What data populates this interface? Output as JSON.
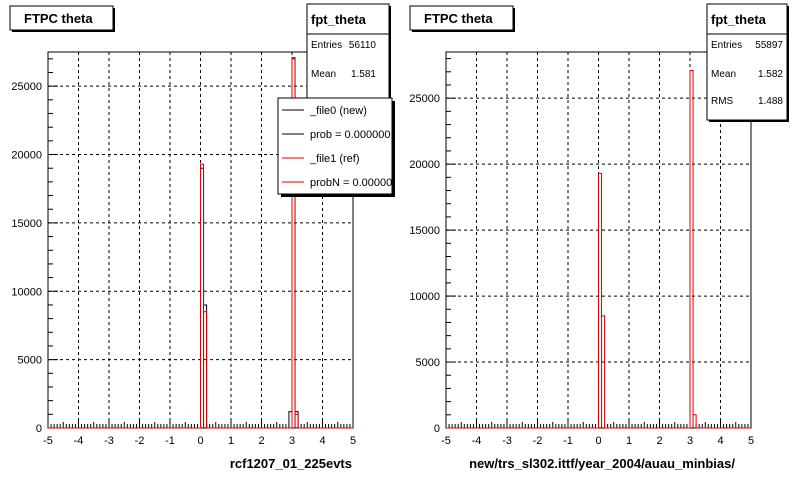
{
  "colors": {
    "new": "#000000",
    "ref": "#dd0000",
    "grid": "#000000",
    "box_shadow": "#000000",
    "background": "#ffffff"
  },
  "chart_data": [
    {
      "type": "histogram",
      "title": "FTPC theta",
      "xlabel": "rcf1207_01_225evts",
      "ylabel": "",
      "xlim": [
        -5,
        5
      ],
      "ylim": [
        0,
        27500
      ],
      "x_ticks": [
        -5,
        -4,
        -3,
        -2,
        -1,
        0,
        1,
        2,
        3,
        4,
        5
      ],
      "y_ticks": [
        0,
        5000,
        10000,
        15000,
        20000,
        25000
      ],
      "grid": true,
      "stats": {
        "name": "fpt_theta",
        "rows": [
          {
            "label": "Entries",
            "value": "56110"
          },
          {
            "label": "Mean",
            "value": "1.581"
          }
        ]
      },
      "legend": {
        "placement": "top-right",
        "entries": [
          {
            "label": "_file0 (new)",
            "series": "new"
          },
          {
            "label": "prob = 0.000000",
            "series": "new"
          },
          {
            "label": "_file1 (ref)",
            "series": "ref"
          },
          {
            "label": "probN = 0.000000",
            "series": "ref"
          }
        ]
      },
      "series": [
        {
          "key": "new",
          "bins": [
            [
              0.0,
              0.1,
              19000
            ],
            [
              0.1,
              0.2,
              9000
            ],
            [
              2.9,
              3.0,
              1200
            ],
            [
              3.0,
              3.1,
              27000
            ],
            [
              3.1,
              3.2,
              1200
            ]
          ]
        },
        {
          "key": "ref",
          "bins": [
            [
              0.0,
              0.1,
              19300
            ],
            [
              0.1,
              0.2,
              8500
            ],
            [
              2.9,
              3.0,
              0
            ],
            [
              3.0,
              3.1,
              27100
            ],
            [
              3.1,
              3.2,
              1000
            ]
          ]
        }
      ]
    },
    {
      "type": "histogram",
      "title": "FTPC theta",
      "xlabel": "new/trs_sl302.ittf/year_2004/auau_minbias/",
      "ylabel": "",
      "xlim": [
        -5,
        5
      ],
      "ylim": [
        0,
        28500
      ],
      "x_ticks": [
        -5,
        -4,
        -3,
        -2,
        -1,
        0,
        1,
        2,
        3,
        4,
        5
      ],
      "y_ticks": [
        0,
        5000,
        10000,
        15000,
        20000,
        25000
      ],
      "grid": true,
      "stats": {
        "name": "fpt_theta",
        "rows": [
          {
            "label": "Entries",
            "value": "55897"
          },
          {
            "label": "Mean",
            "value": "1.582"
          },
          {
            "label": "RMS",
            "value": "1.488"
          }
        ]
      },
      "series": [
        {
          "key": "ref",
          "bins": [
            [
              0.0,
              0.1,
              19300
            ],
            [
              0.1,
              0.2,
              8500
            ],
            [
              3.0,
              3.1,
              27100
            ],
            [
              3.1,
              3.2,
              1000
            ]
          ]
        }
      ]
    }
  ]
}
